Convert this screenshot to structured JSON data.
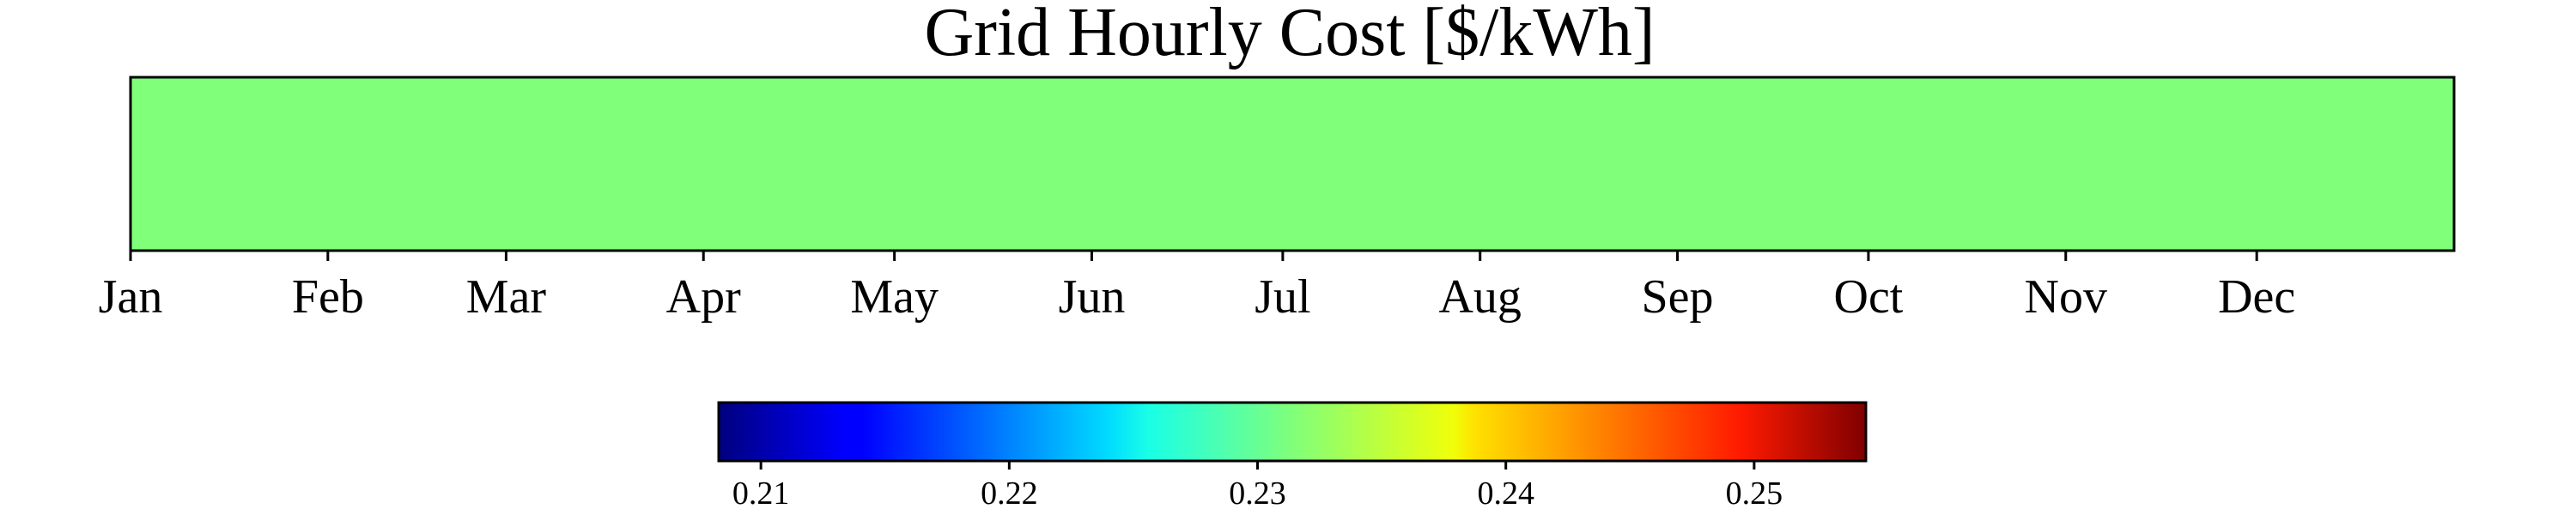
{
  "chart_data": {
    "type": "heatmap",
    "title": "Grid Hourly Cost [$/kWh]",
    "xlabel": "",
    "ylabel": "",
    "x_ticks": [
      "Jan",
      "Feb",
      "Mar",
      "Apr",
      "May",
      "Jun",
      "Jul",
      "Aug",
      "Sep",
      "Oct",
      "Nov",
      "Dec"
    ],
    "x_tick_days": [
      0,
      31,
      59,
      90,
      120,
      151,
      181,
      212,
      243,
      273,
      304,
      334
    ],
    "x_range_days": [
      0,
      365
    ],
    "value": 0.2314,
    "colormap": "jet",
    "cell_color": "#80ff7a",
    "colorbar": {
      "orientation": "horizontal",
      "range": [
        0.2083,
        0.2545
      ],
      "ticks": [
        0.21,
        0.22,
        0.23,
        0.24,
        0.25
      ],
      "tick_labels": [
        "0.21",
        "0.22",
        "0.23",
        "0.24",
        "0.25"
      ]
    }
  }
}
